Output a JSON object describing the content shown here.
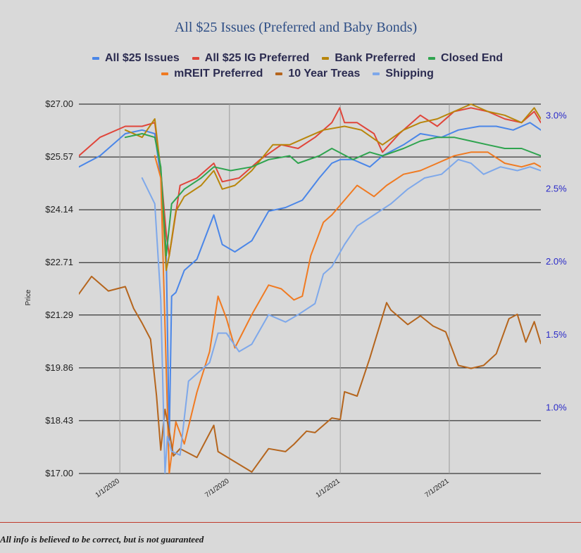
{
  "disclaimer": "All info is believed to be correct, but is not guaranteed",
  "chart_data": {
    "type": "line",
    "title": "All $25 Issues (Preferred and Baby Bonds)",
    "xlabel": "",
    "ylabel": "Price",
    "y2label": "",
    "ylim": [
      17.0,
      27.0
    ],
    "yticks": [
      "$27.00",
      "$25.57",
      "$24.14",
      "$22.71",
      "$21.29",
      "$19.86",
      "$18.43",
      "$17.00"
    ],
    "y2lim": [
      0.55,
      3.08
    ],
    "y2ticks": [
      "3.0%",
      "2.5%",
      "2.0%",
      "1.5%",
      "1.0%"
    ],
    "xticks": [
      "1/1/2020",
      "7/1/2020",
      "1/1/2021",
      "7/1/2021"
    ],
    "xlim": [
      "2019-10-25",
      "2021-11-30"
    ],
    "grid": "horizontal",
    "legend_position": "top",
    "series": [
      {
        "name": "All $25 Issues",
        "color": "#4a86e8",
        "axis": "left",
        "points": [
          [
            "2019-10-25",
            25.3
          ],
          [
            "2019-11-29",
            25.6
          ],
          [
            "2020-01-10",
            26.2
          ],
          [
            "2020-02-07",
            26.3
          ],
          [
            "2020-02-28",
            26.2
          ],
          [
            "2020-03-09",
            25.0
          ],
          [
            "2020-03-18",
            23.0
          ],
          [
            "2020-03-23",
            17.9
          ],
          [
            "2020-03-27",
            21.8
          ],
          [
            "2020-04-03",
            21.9
          ],
          [
            "2020-04-17",
            22.5
          ],
          [
            "2020-05-08",
            22.8
          ],
          [
            "2020-05-22",
            23.4
          ],
          [
            "2020-06-05",
            24.0
          ],
          [
            "2020-06-19",
            23.2
          ],
          [
            "2020-07-10",
            23.0
          ],
          [
            "2020-08-07",
            23.3
          ],
          [
            "2020-09-04",
            24.1
          ],
          [
            "2020-10-02",
            24.2
          ],
          [
            "2020-10-30",
            24.4
          ],
          [
            "2020-11-27",
            25.0
          ],
          [
            "2020-12-18",
            25.4
          ],
          [
            "2021-01-01",
            25.5
          ],
          [
            "2021-01-22",
            25.5
          ],
          [
            "2021-02-19",
            25.3
          ],
          [
            "2021-03-12",
            25.6
          ],
          [
            "2021-04-16",
            25.9
          ],
          [
            "2021-05-14",
            26.2
          ],
          [
            "2021-06-18",
            26.1
          ],
          [
            "2021-07-16",
            26.3
          ],
          [
            "2021-08-20",
            26.4
          ],
          [
            "2021-09-17",
            26.4
          ],
          [
            "2021-10-15",
            26.3
          ],
          [
            "2021-11-12",
            26.5
          ],
          [
            "2021-11-30",
            26.3
          ]
        ]
      },
      {
        "name": "All $25 IG Preferred",
        "color": "#e0453a",
        "axis": "left",
        "points": [
          [
            "2019-10-25",
            25.6
          ],
          [
            "2019-11-29",
            26.1
          ],
          [
            "2020-01-10",
            26.4
          ],
          [
            "2020-02-07",
            26.4
          ],
          [
            "2020-02-28",
            26.5
          ],
          [
            "2020-03-09",
            25.2
          ],
          [
            "2020-03-18",
            23.5
          ],
          [
            "2020-03-23",
            22.9
          ],
          [
            "2020-03-27",
            23.3
          ],
          [
            "2020-04-10",
            24.8
          ],
          [
            "2020-05-08",
            25.0
          ],
          [
            "2020-06-05",
            25.4
          ],
          [
            "2020-06-19",
            24.9
          ],
          [
            "2020-07-17",
            25.0
          ],
          [
            "2020-08-21",
            25.5
          ],
          [
            "2020-09-25",
            25.9
          ],
          [
            "2020-10-23",
            25.8
          ],
          [
            "2020-11-20",
            26.1
          ],
          [
            "2020-12-18",
            26.5
          ],
          [
            "2020-12-31",
            26.9
          ],
          [
            "2021-01-08",
            26.5
          ],
          [
            "2021-01-29",
            26.5
          ],
          [
            "2021-02-26",
            26.2
          ],
          [
            "2021-03-12",
            25.7
          ],
          [
            "2021-04-09",
            26.2
          ],
          [
            "2021-05-14",
            26.7
          ],
          [
            "2021-06-11",
            26.4
          ],
          [
            "2021-07-09",
            26.8
          ],
          [
            "2021-08-06",
            26.9
          ],
          [
            "2021-09-03",
            26.8
          ],
          [
            "2021-10-01",
            26.6
          ],
          [
            "2021-10-29",
            26.5
          ],
          [
            "2021-11-19",
            26.8
          ],
          [
            "2021-11-30",
            26.5
          ]
        ]
      },
      {
        "name": "Bank Preferred",
        "color": "#b8860b",
        "axis": "left",
        "points": [
          [
            "2020-01-10",
            26.3
          ],
          [
            "2020-02-07",
            26.1
          ],
          [
            "2020-02-28",
            26.6
          ],
          [
            "2020-03-09",
            25.2
          ],
          [
            "2020-03-18",
            22.5
          ],
          [
            "2020-03-23",
            22.9
          ],
          [
            "2020-04-03",
            24.1
          ],
          [
            "2020-04-17",
            24.5
          ],
          [
            "2020-05-15",
            24.8
          ],
          [
            "2020-06-05",
            25.2
          ],
          [
            "2020-06-19",
            24.7
          ],
          [
            "2020-07-10",
            24.8
          ],
          [
            "2020-08-07",
            25.2
          ],
          [
            "2020-09-11",
            25.9
          ],
          [
            "2020-10-09",
            25.9
          ],
          [
            "2020-11-06",
            26.1
          ],
          [
            "2020-12-04",
            26.3
          ],
          [
            "2021-01-08",
            26.4
          ],
          [
            "2021-02-05",
            26.3
          ],
          [
            "2021-03-12",
            25.9
          ],
          [
            "2021-04-16",
            26.3
          ],
          [
            "2021-05-14",
            26.5
          ],
          [
            "2021-06-11",
            26.6
          ],
          [
            "2021-07-09",
            26.8
          ],
          [
            "2021-08-06",
            27.0
          ],
          [
            "2021-09-03",
            26.8
          ],
          [
            "2021-10-01",
            26.7
          ],
          [
            "2021-10-29",
            26.5
          ],
          [
            "2021-11-19",
            26.9
          ],
          [
            "2021-11-30",
            26.6
          ]
        ]
      },
      {
        "name": "Closed End",
        "color": "#2fa44f",
        "axis": "left",
        "points": [
          [
            "2020-01-10",
            26.1
          ],
          [
            "2020-02-07",
            26.2
          ],
          [
            "2020-02-28",
            26.1
          ],
          [
            "2020-03-09",
            25.3
          ],
          [
            "2020-03-18",
            22.9
          ],
          [
            "2020-03-27",
            24.3
          ],
          [
            "2020-04-17",
            24.7
          ],
          [
            "2020-05-15",
            25.0
          ],
          [
            "2020-06-05",
            25.3
          ],
          [
            "2020-07-03",
            25.2
          ],
          [
            "2020-08-07",
            25.3
          ],
          [
            "2020-09-04",
            25.5
          ],
          [
            "2020-10-09",
            25.6
          ],
          [
            "2020-10-23",
            25.4
          ],
          [
            "2020-11-27",
            25.6
          ],
          [
            "2020-12-18",
            25.8
          ],
          [
            "2021-01-22",
            25.5
          ],
          [
            "2021-02-19",
            25.7
          ],
          [
            "2021-03-12",
            25.6
          ],
          [
            "2021-04-16",
            25.8
          ],
          [
            "2021-05-14",
            26.0
          ],
          [
            "2021-06-11",
            26.1
          ],
          [
            "2021-07-09",
            26.1
          ],
          [
            "2021-08-06",
            26.0
          ],
          [
            "2021-09-03",
            25.9
          ],
          [
            "2021-10-01",
            25.8
          ],
          [
            "2021-10-29",
            25.8
          ],
          [
            "2021-11-30",
            25.6
          ]
        ]
      },
      {
        "name": "mREIT Preferred",
        "color": "#f07a21",
        "axis": "left",
        "points": [
          [
            "2020-02-28",
            25.6
          ],
          [
            "2020-03-09",
            25.0
          ],
          [
            "2020-03-16",
            21.0
          ],
          [
            "2020-03-23",
            17.0
          ],
          [
            "2020-04-03",
            18.4
          ],
          [
            "2020-04-17",
            17.8
          ],
          [
            "2020-05-08",
            19.2
          ],
          [
            "2020-05-29",
            20.3
          ],
          [
            "2020-06-12",
            21.8
          ],
          [
            "2020-06-26",
            21.2
          ],
          [
            "2020-07-10",
            20.4
          ],
          [
            "2020-08-07",
            21.3
          ],
          [
            "2020-09-04",
            22.1
          ],
          [
            "2020-09-25",
            22.0
          ],
          [
            "2020-10-16",
            21.7
          ],
          [
            "2020-10-30",
            21.8
          ],
          [
            "2020-11-13",
            22.9
          ],
          [
            "2020-12-04",
            23.8
          ],
          [
            "2020-12-18",
            24.0
          ],
          [
            "2021-01-08",
            24.4
          ],
          [
            "2021-01-29",
            24.8
          ],
          [
            "2021-02-26",
            24.5
          ],
          [
            "2021-03-19",
            24.8
          ],
          [
            "2021-04-16",
            25.1
          ],
          [
            "2021-05-14",
            25.2
          ],
          [
            "2021-06-11",
            25.4
          ],
          [
            "2021-07-09",
            25.6
          ],
          [
            "2021-08-06",
            25.7
          ],
          [
            "2021-09-03",
            25.7
          ],
          [
            "2021-10-01",
            25.4
          ],
          [
            "2021-10-29",
            25.3
          ],
          [
            "2021-11-19",
            25.4
          ],
          [
            "2021-11-30",
            25.3
          ]
        ]
      },
      {
        "name": "10 Year Treas",
        "color": "#b5651d",
        "axis": "right",
        "points": [
          [
            "2019-10-25",
            1.78
          ],
          [
            "2019-11-15",
            1.9
          ],
          [
            "2019-12-13",
            1.8
          ],
          [
            "2020-01-10",
            1.83
          ],
          [
            "2020-01-24",
            1.68
          ],
          [
            "2020-02-07",
            1.58
          ],
          [
            "2020-02-21",
            1.47
          ],
          [
            "2020-03-02",
            1.08
          ],
          [
            "2020-03-09",
            0.71
          ],
          [
            "2020-03-16",
            0.99
          ],
          [
            "2020-03-23",
            0.84
          ],
          [
            "2020-03-30",
            0.67
          ],
          [
            "2020-04-10",
            0.72
          ],
          [
            "2020-05-08",
            0.66
          ],
          [
            "2020-06-05",
            0.88
          ],
          [
            "2020-06-12",
            0.7
          ],
          [
            "2020-07-10",
            0.63
          ],
          [
            "2020-08-07",
            0.56
          ],
          [
            "2020-09-04",
            0.72
          ],
          [
            "2020-10-02",
            0.7
          ],
          [
            "2020-10-16",
            0.75
          ],
          [
            "2020-11-06",
            0.84
          ],
          [
            "2020-11-20",
            0.83
          ],
          [
            "2020-12-18",
            0.93
          ],
          [
            "2021-01-01",
            0.92
          ],
          [
            "2021-01-08",
            1.11
          ],
          [
            "2021-01-29",
            1.08
          ],
          [
            "2021-02-19",
            1.34
          ],
          [
            "2021-03-19",
            1.72
          ],
          [
            "2021-03-26",
            1.67
          ],
          [
            "2021-04-23",
            1.57
          ],
          [
            "2021-05-14",
            1.63
          ],
          [
            "2021-06-04",
            1.56
          ],
          [
            "2021-06-25",
            1.52
          ],
          [
            "2021-07-16",
            1.29
          ],
          [
            "2021-08-06",
            1.27
          ],
          [
            "2021-08-27",
            1.29
          ],
          [
            "2021-09-17",
            1.37
          ],
          [
            "2021-10-08",
            1.61
          ],
          [
            "2021-10-22",
            1.64
          ],
          [
            "2021-11-05",
            1.45
          ],
          [
            "2021-11-19",
            1.59
          ],
          [
            "2021-11-30",
            1.44
          ]
        ]
      },
      {
        "name": "Shipping",
        "color": "#7ea8ea",
        "axis": "left",
        "points": [
          [
            "2020-02-07",
            25.0
          ],
          [
            "2020-02-28",
            24.3
          ],
          [
            "2020-03-09",
            21.7
          ],
          [
            "2020-03-16",
            17.0
          ],
          [
            "2020-03-20",
            18.0
          ],
          [
            "2020-03-27",
            17.6
          ],
          [
            "2020-04-10",
            17.5
          ],
          [
            "2020-04-24",
            19.5
          ],
          [
            "2020-05-15",
            19.8
          ],
          [
            "2020-05-29",
            20.0
          ],
          [
            "2020-06-12",
            20.8
          ],
          [
            "2020-06-26",
            20.8
          ],
          [
            "2020-07-17",
            20.3
          ],
          [
            "2020-08-07",
            20.5
          ],
          [
            "2020-09-04",
            21.3
          ],
          [
            "2020-10-02",
            21.1
          ],
          [
            "2020-10-23",
            21.3
          ],
          [
            "2020-11-20",
            21.6
          ],
          [
            "2020-12-04",
            22.4
          ],
          [
            "2020-12-18",
            22.6
          ],
          [
            "2021-01-08",
            23.2
          ],
          [
            "2021-01-29",
            23.7
          ],
          [
            "2021-02-26",
            24.0
          ],
          [
            "2021-03-26",
            24.3
          ],
          [
            "2021-04-23",
            24.7
          ],
          [
            "2021-05-21",
            25.0
          ],
          [
            "2021-06-18",
            25.1
          ],
          [
            "2021-07-16",
            25.5
          ],
          [
            "2021-08-06",
            25.4
          ],
          [
            "2021-08-27",
            25.1
          ],
          [
            "2021-09-24",
            25.3
          ],
          [
            "2021-10-22",
            25.2
          ],
          [
            "2021-11-12",
            25.3
          ],
          [
            "2021-11-30",
            25.2
          ]
        ]
      }
    ]
  }
}
